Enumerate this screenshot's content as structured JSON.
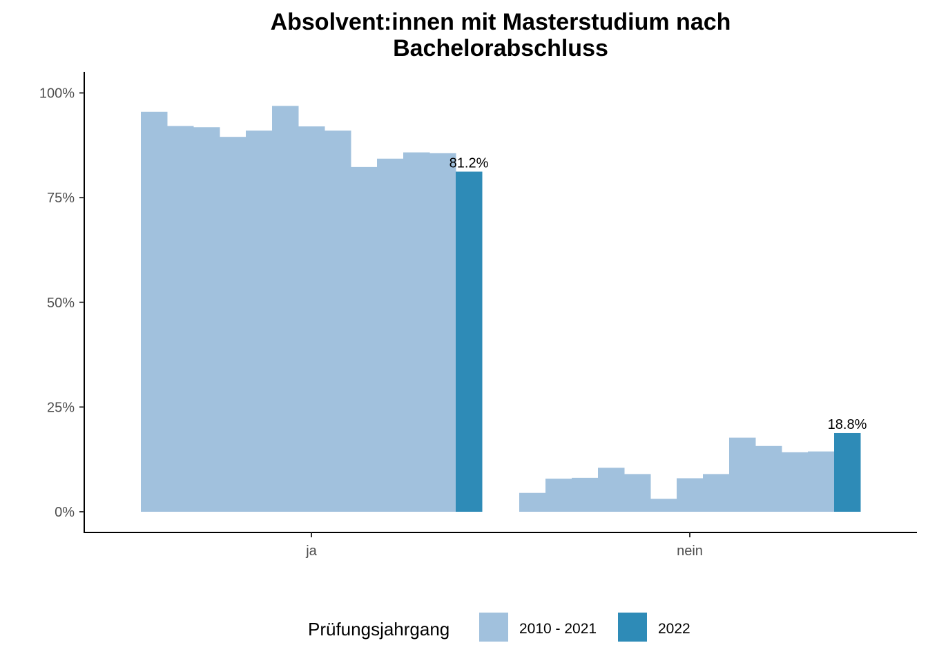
{
  "chart_data": {
    "type": "bar",
    "title_lines": [
      "Absolvent:innen mit Masterstudium nach",
      "Bachelorabschluss"
    ],
    "xlabel": "",
    "ylabel": "",
    "ylim": [
      0,
      1.05
    ],
    "y_ticks": [
      0,
      0.25,
      0.5,
      0.75,
      1.0
    ],
    "y_tick_labels": [
      "0%",
      "25%",
      "50%",
      "75%",
      "100%"
    ],
    "grid": false,
    "legend": {
      "title": "Prüfungsjahrgang",
      "placement": "bottom",
      "entries": [
        {
          "label": "2010 - 2021",
          "color": "#a1c1dd"
        },
        {
          "label": "2022",
          "color": "#2e8bb7"
        }
      ]
    },
    "categories": [
      "ja",
      "nein"
    ],
    "groups": [
      {
        "category": "ja",
        "bars": [
          {
            "value": 0.955,
            "group": "2010 - 2021"
          },
          {
            "value": 0.921,
            "group": "2010 - 2021"
          },
          {
            "value": 0.918,
            "group": "2010 - 2021"
          },
          {
            "value": 0.895,
            "group": "2010 - 2021"
          },
          {
            "value": 0.91,
            "group": "2010 - 2021"
          },
          {
            "value": 0.969,
            "group": "2010 - 2021"
          },
          {
            "value": 0.92,
            "group": "2010 - 2021"
          },
          {
            "value": 0.91,
            "group": "2010 - 2021"
          },
          {
            "value": 0.823,
            "group": "2010 - 2021"
          },
          {
            "value": 0.843,
            "group": "2010 - 2021"
          },
          {
            "value": 0.858,
            "group": "2010 - 2021"
          },
          {
            "value": 0.856,
            "group": "2010 - 2021"
          },
          {
            "value": 0.812,
            "group": "2022",
            "label": "81.2%"
          }
        ]
      },
      {
        "category": "nein",
        "bars": [
          {
            "value": 0.045,
            "group": "2010 - 2021"
          },
          {
            "value": 0.079,
            "group": "2010 - 2021"
          },
          {
            "value": 0.081,
            "group": "2010 - 2021"
          },
          {
            "value": 0.105,
            "group": "2010 - 2021"
          },
          {
            "value": 0.09,
            "group": "2010 - 2021"
          },
          {
            "value": 0.031,
            "group": "2010 - 2021"
          },
          {
            "value": 0.08,
            "group": "2010 - 2021"
          },
          {
            "value": 0.09,
            "group": "2010 - 2021"
          },
          {
            "value": 0.177,
            "group": "2010 - 2021"
          },
          {
            "value": 0.157,
            "group": "2010 - 2021"
          },
          {
            "value": 0.142,
            "group": "2010 - 2021"
          },
          {
            "value": 0.144,
            "group": "2010 - 2021"
          },
          {
            "value": 0.188,
            "group": "2022",
            "label": "18.8%"
          }
        ]
      }
    ]
  }
}
